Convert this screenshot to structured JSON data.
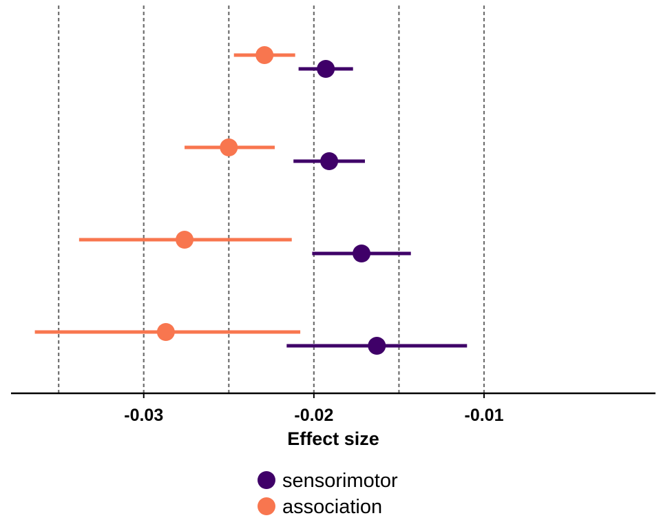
{
  "chart_data": {
    "type": "scatter",
    "subtype": "forest-plot",
    "title": "",
    "xlabel": "Effect size",
    "ylabel": "",
    "xlim": [
      -0.0378,
      0.0004
    ],
    "x_ticks": [
      -0.03,
      -0.02,
      -0.01
    ],
    "x_tick_labels": [
      "-0.03",
      "-0.02",
      "-0.01"
    ],
    "vertical_gridlines": [
      -0.035,
      -0.03,
      -0.025,
      -0.02,
      -0.015,
      -0.01
    ],
    "grid": "dashed vertical",
    "legend_position": "bottom",
    "series": [
      {
        "name": "sensorimotor",
        "color": "#3f0068",
        "points": [
          {
            "estimate": -0.0193,
            "lower": -0.0209,
            "upper": -0.0177
          },
          {
            "estimate": -0.0191,
            "lower": -0.0212,
            "upper": -0.017
          },
          {
            "estimate": -0.0172,
            "lower": -0.0201,
            "upper": -0.0143
          },
          {
            "estimate": -0.0163,
            "lower": -0.0216,
            "upper": -0.011
          }
        ]
      },
      {
        "name": "association",
        "color": "#f8764f",
        "points": [
          {
            "estimate": -0.0229,
            "lower": -0.0247,
            "upper": -0.0211
          },
          {
            "estimate": -0.025,
            "lower": -0.0276,
            "upper": -0.0223
          },
          {
            "estimate": -0.0276,
            "lower": -0.0338,
            "upper": -0.0213
          },
          {
            "estimate": -0.0287,
            "lower": -0.0364,
            "upper": -0.0208
          }
        ]
      }
    ]
  }
}
